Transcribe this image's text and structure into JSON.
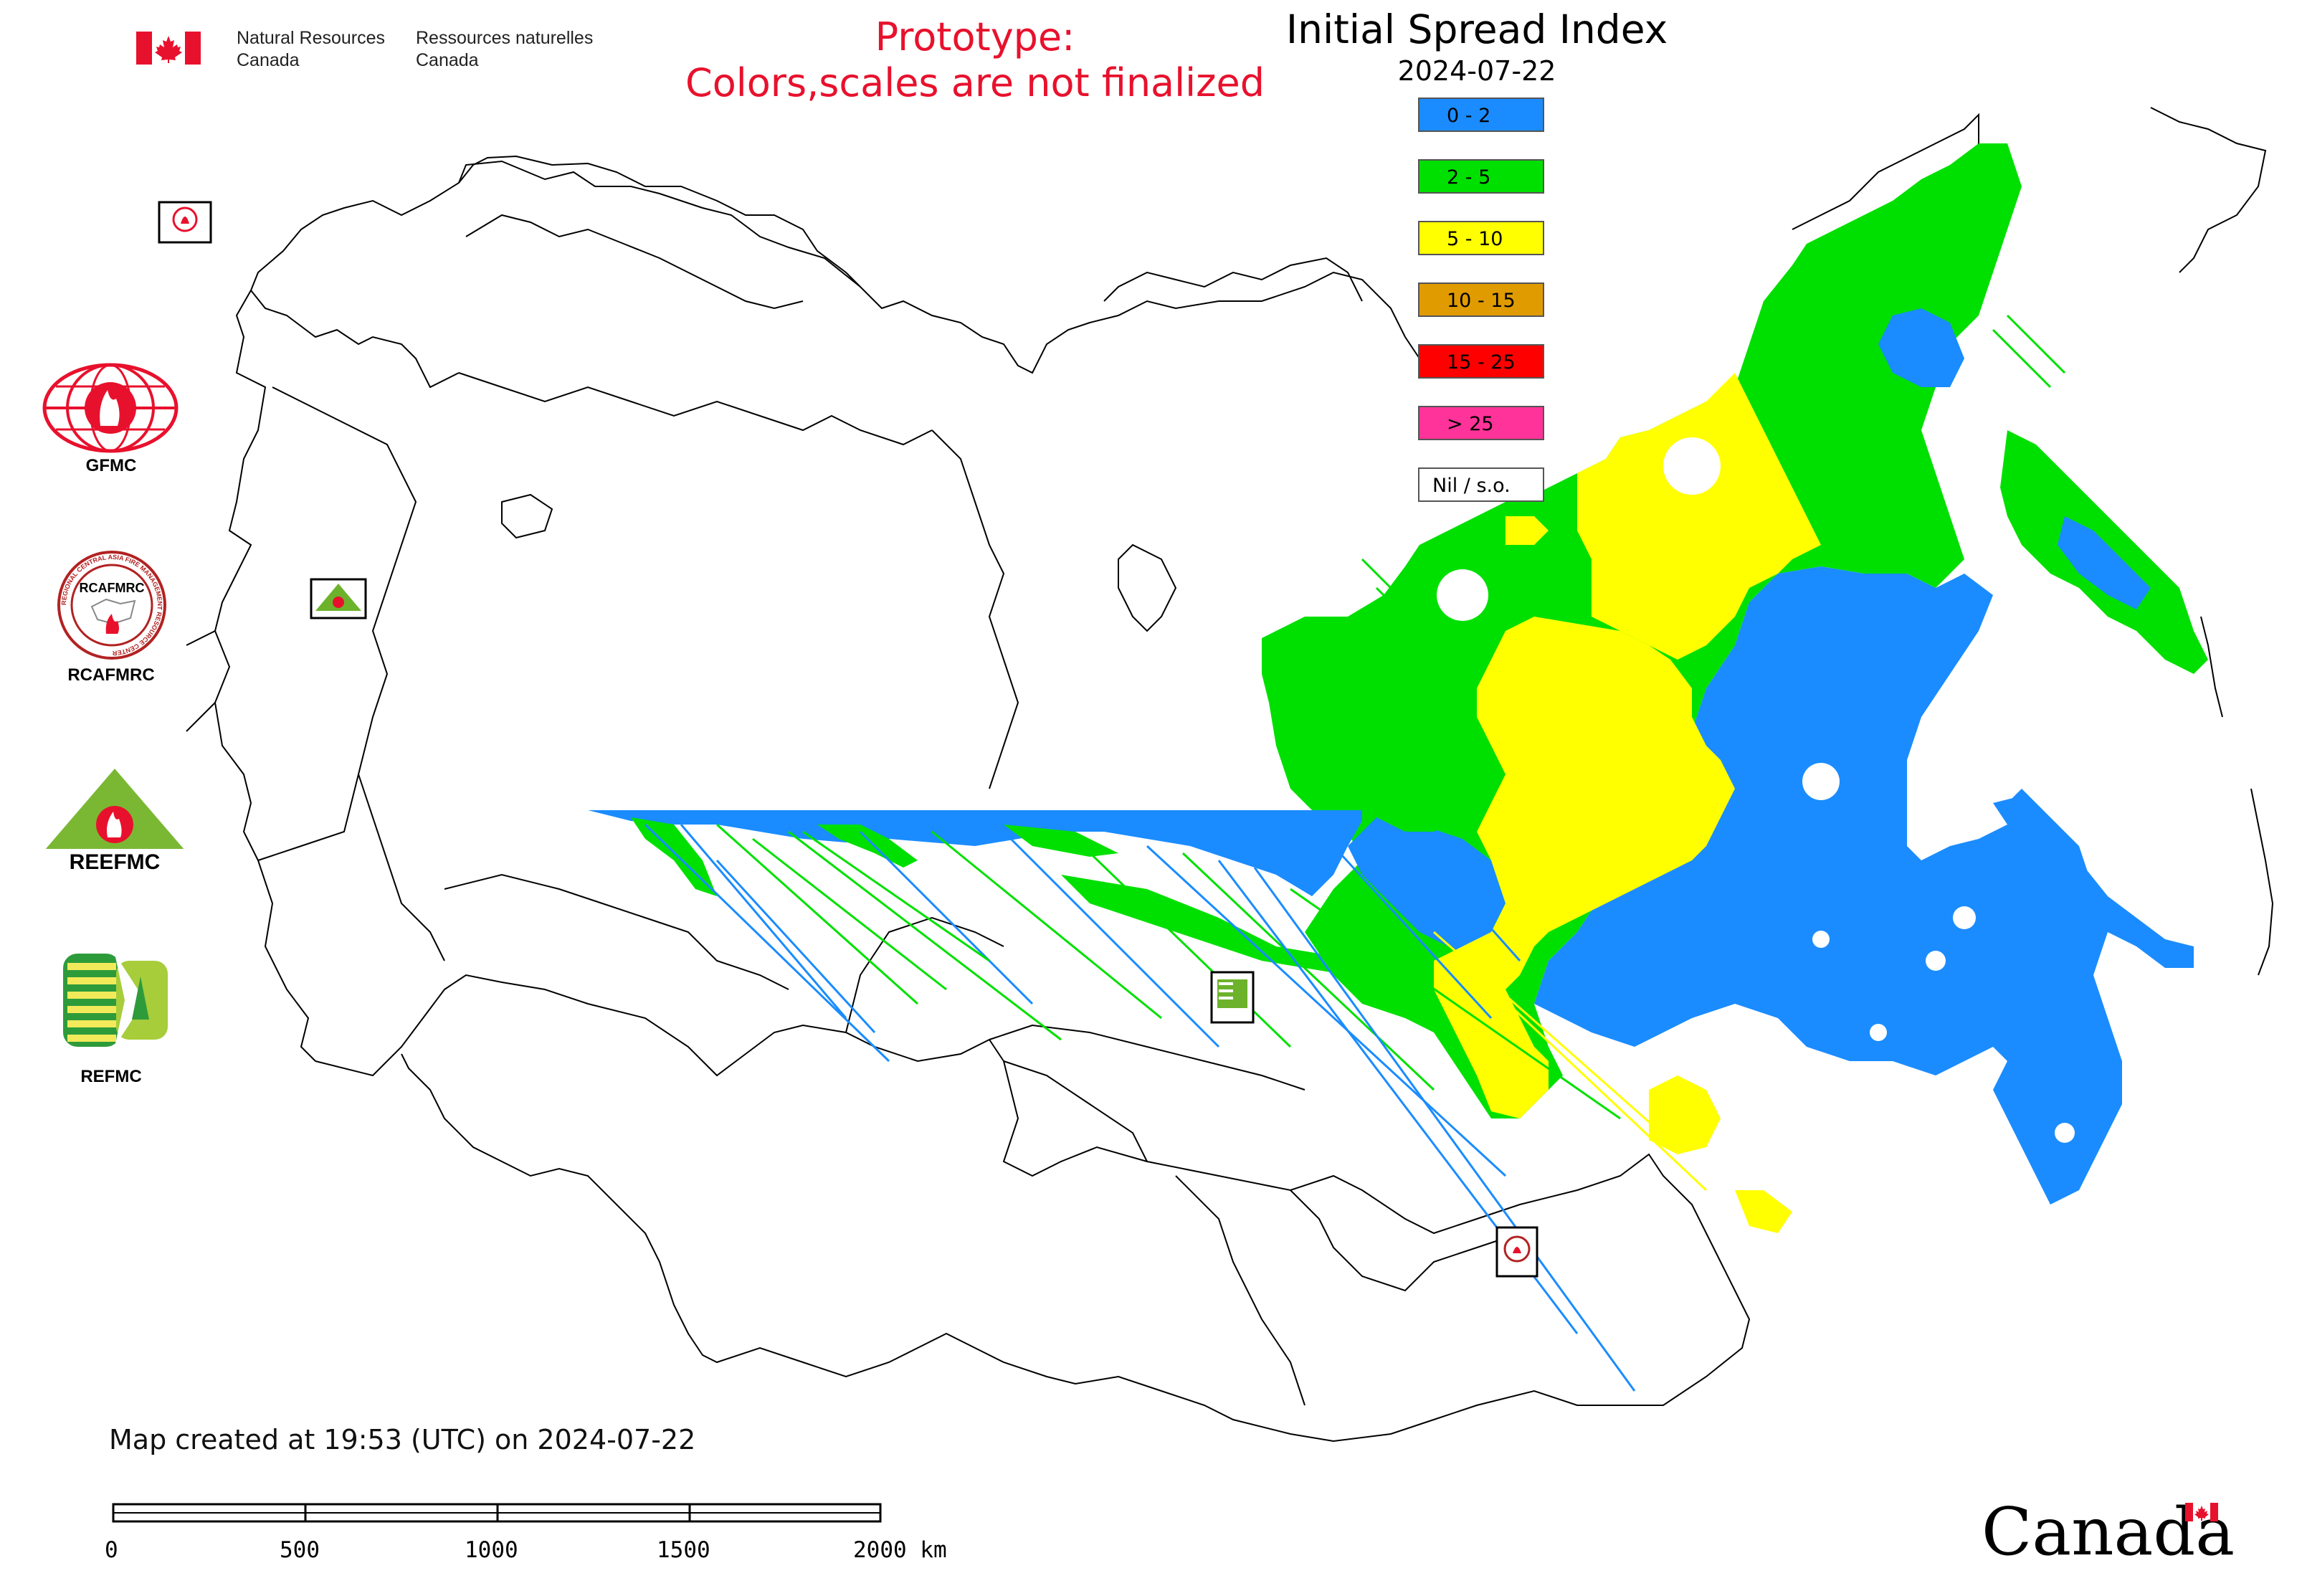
{
  "header": {
    "dept_en_line1": "Natural Resources",
    "dept_en_line2": "Canada",
    "dept_fr_line1": "Ressources naturelles",
    "dept_fr_line2": "Canada",
    "flag_color": "#e8112d"
  },
  "notice": {
    "line1": "Prototype:",
    "line2": "Colors,scales are not finalized",
    "color": "#e8112d"
  },
  "map": {
    "title": "Initial Spread Index",
    "date": "2024-07-22"
  },
  "legend": {
    "items": [
      {
        "label": "0 - 2",
        "color": "#1a8cff"
      },
      {
        "label": "2 - 5",
        "color": "#00e000"
      },
      {
        "label": "5 - 10",
        "color": "#ffff00"
      },
      {
        "label": "10 - 15",
        "color": "#e09b00"
      },
      {
        "label": "15 - 25",
        "color": "#ff0000"
      },
      {
        "label": "> 25",
        "color": "#ff3399"
      },
      {
        "label": "Nil / s.o.",
        "color": "#ffffff"
      }
    ]
  },
  "logos": {
    "gfmc": "GFMC",
    "rcafmrc": "RCAFMRC",
    "reefmc": "REEFMC",
    "refmc": "REFMC",
    "rcafmrc_ring_text": "REGIONAL CENTRAL ASIA FIRE MANAGEMENT RESOURCE CENTER"
  },
  "footer": {
    "created": "Map created at 19:53 (UTC) on 2024-07-22",
    "scale_labels": [
      "0",
      "500",
      "1000",
      "1500",
      "2000 km"
    ],
    "wordmark": "Canada"
  }
}
